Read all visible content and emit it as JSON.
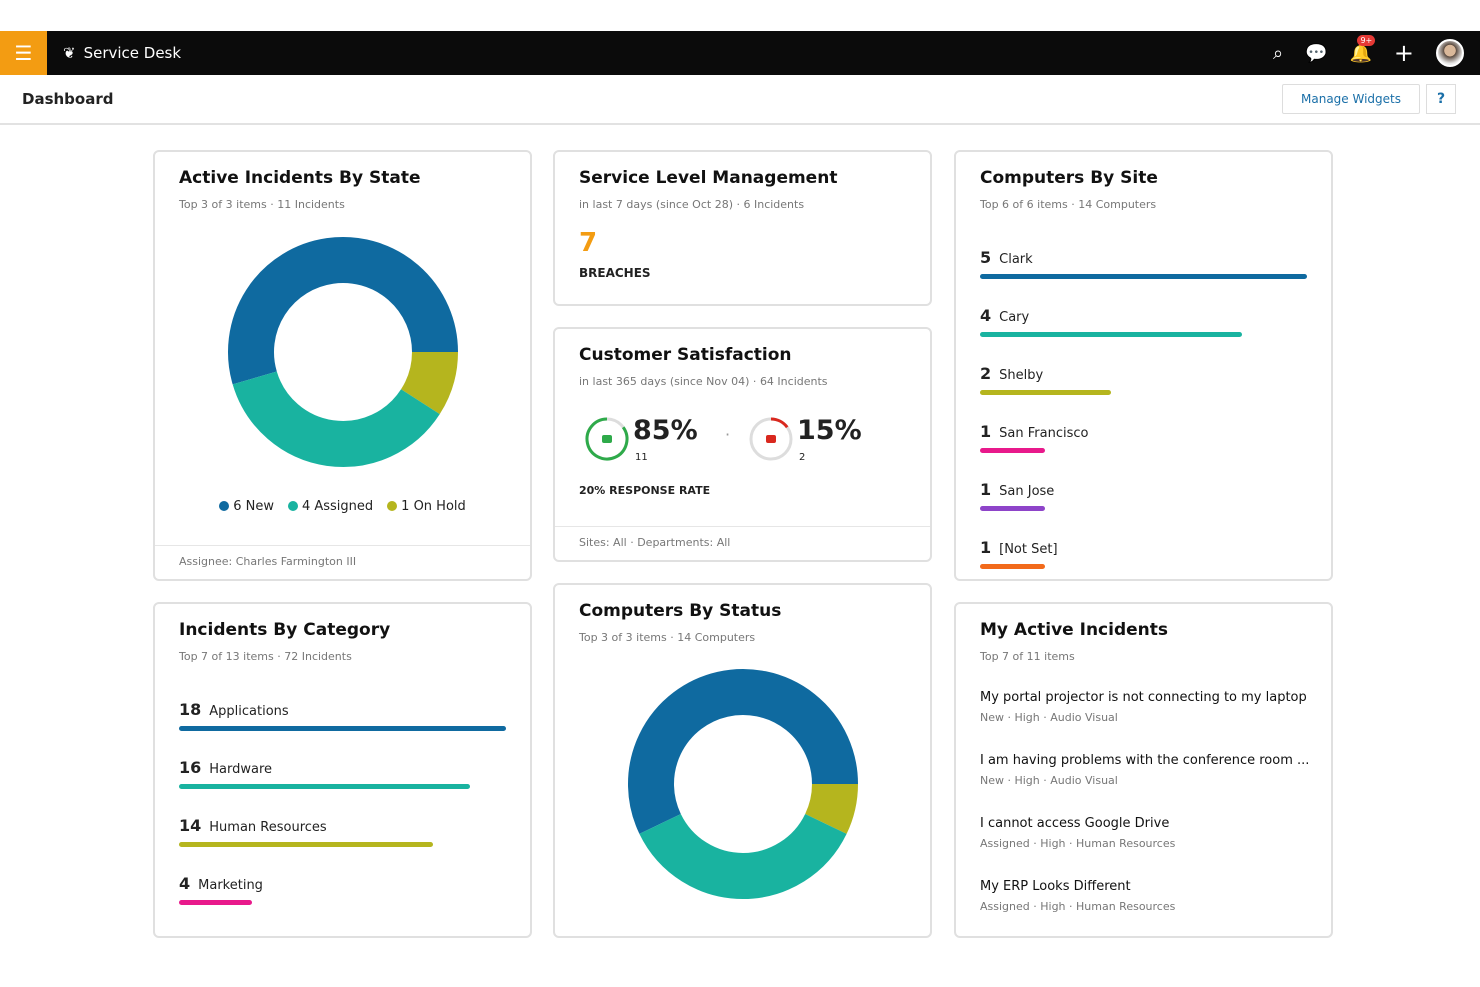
{
  "app": {
    "title": "Service Desk",
    "notification_badge": "9+"
  },
  "header": {
    "title": "Dashboard",
    "manage_widgets": "Manage Widgets",
    "help": "?"
  },
  "colors": {
    "blue": "#0f6aa0",
    "teal": "#19b3a0",
    "olive": "#b5b51e",
    "pink": "#e8198b",
    "purple": "#8e44c9",
    "orange": "#f26a1b",
    "accent": "#f39c12"
  },
  "active_incidents": {
    "title": "Active Incidents By State",
    "subtitle_a": "Top 3 of 3 items",
    "subtitle_b": "11 Incidents",
    "chart_data": {
      "type": "pie",
      "categories": [
        "New",
        "Assigned",
        "On Hold"
      ],
      "values": [
        6,
        4,
        1
      ]
    },
    "legend": [
      "6 New",
      "4 Assigned",
      "1 On Hold"
    ],
    "footer": "Assignee: Charles Farmington III"
  },
  "slm": {
    "title": "Service Level Management",
    "subtitle_a": "in last 7 days (since Oct 28)",
    "subtitle_b": "6 Incidents",
    "value": "7",
    "label": "BREACHES"
  },
  "csat": {
    "title": "Customer Satisfaction",
    "subtitle_a": "in last 365 days (since Nov 04)",
    "subtitle_b": "64 Incidents",
    "positive": {
      "pct": "85%",
      "count": "11",
      "fraction": 0.85
    },
    "negative": {
      "pct": "15%",
      "count": "2",
      "fraction": 0.15
    },
    "response": "20% RESPONSE RATE",
    "footer_a": "Sites: All",
    "footer_b": "Departments: All"
  },
  "computers_by_site": {
    "title": "Computers By Site",
    "subtitle_a": "Top 6 of 6 items",
    "subtitle_b": "14 Computers",
    "items": [
      {
        "n": "5",
        "label": "Clark",
        "value": 5,
        "color": "#0f6aa0"
      },
      {
        "n": "4",
        "label": "Cary",
        "value": 4,
        "color": "#19b3a0"
      },
      {
        "n": "2",
        "label": "Shelby",
        "value": 2,
        "color": "#b5b51e"
      },
      {
        "n": "1",
        "label": "San Francisco",
        "value": 1,
        "color": "#e8198b"
      },
      {
        "n": "1",
        "label": "San Jose",
        "value": 1,
        "color": "#8e44c9"
      },
      {
        "n": "1",
        "label": "[Not Set]",
        "value": 1,
        "color": "#f26a1b"
      }
    ]
  },
  "incidents_by_category": {
    "title": "Incidents By Category",
    "subtitle_a": "Top 7 of 13 items",
    "subtitle_b": "72 Incidents",
    "items": [
      {
        "n": "18",
        "label": "Applications",
        "value": 18,
        "color": "#0f6aa0"
      },
      {
        "n": "16",
        "label": "Hardware",
        "value": 16,
        "color": "#19b3a0"
      },
      {
        "n": "14",
        "label": "Human Resources",
        "value": 14,
        "color": "#b5b51e"
      },
      {
        "n": "4",
        "label": "Marketing",
        "value": 4,
        "color": "#e8198b"
      }
    ]
  },
  "computers_by_status": {
    "title": "Computers By Status",
    "subtitle_a": "Top 3 of 3 items",
    "subtitle_b": "14 Computers",
    "chart_data": {
      "type": "pie",
      "values": [
        8,
        5,
        1
      ]
    }
  },
  "my_incidents": {
    "title": "My Active Incidents",
    "subtitle": "Top 7 of 11 items",
    "items": [
      {
        "title": "My portal projector is not connecting to my laptop",
        "meta": "New  ·  High  ·  Audio Visual"
      },
      {
        "title": "I am having problems with the conference room ...",
        "meta": "New  ·  High  ·  Audio Visual"
      },
      {
        "title": "I cannot access Google Drive",
        "meta": "Assigned  ·  High  ·  Human Resources"
      },
      {
        "title": "My ERP Looks Different",
        "meta": "Assigned  ·  High  ·  Human Resources"
      }
    ]
  }
}
